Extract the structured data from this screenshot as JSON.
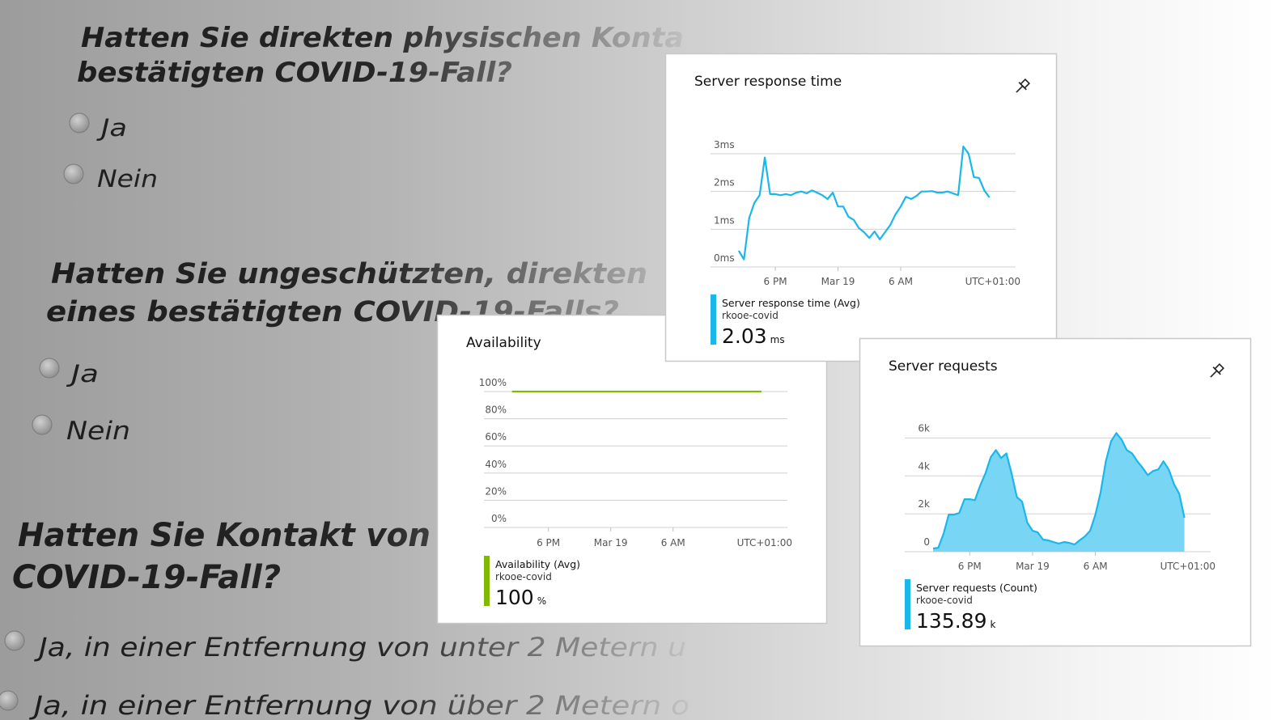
{
  "questions": [
    {
      "lines": [
        "Hatten Sie direkten physischen Konta",
        "bestätigten COVID-19-Fall?"
      ],
      "options": [
        "Ja",
        "Nein"
      ]
    },
    {
      "lines": [
        "Hatten Sie ungeschützten, direkten",
        "eines bestätigten COVID-19-Falls?"
      ],
      "options": [
        "Ja",
        "Nein"
      ]
    },
    {
      "lines": [
        "Hatten Sie Kontakt von",
        "COVID-19-Fall?"
      ],
      "options": [
        "Ja, in einer Entfernung von unter 2 Metern u",
        "Ja, in einer Entfernung von über 2 Metern o"
      ]
    }
  ],
  "chart_data": [
    {
      "type": "line",
      "title": "Server response time",
      "xlim": [
        -5.4,
        53
      ],
      "xticks": [
        {
          "value": 7,
          "label": "6 PM"
        },
        {
          "value": 19,
          "label": "Mar 19"
        },
        {
          "value": 31,
          "label": "6 AM"
        }
      ],
      "timezone": "UTC+01:00",
      "ylim": [
        0,
        3.3
      ],
      "yticks": [
        {
          "value": 0,
          "label": "0ms"
        },
        {
          "value": 1,
          "label": "1ms"
        },
        {
          "value": 2,
          "label": "2ms"
        },
        {
          "value": 3,
          "label": "3ms"
        }
      ],
      "grid": true,
      "series": [
        {
          "name": "Server response time (Avg)",
          "color": "#1ab7ea",
          "values": [
            0.43,
            0.2,
            1.3,
            1.7,
            1.9,
            2.9,
            1.93,
            1.93,
            1.9,
            1.93,
            1.9,
            1.97,
            2.0,
            1.95,
            2.03,
            1.97,
            1.9,
            1.8,
            1.97,
            1.6,
            1.6,
            1.33,
            1.25,
            1.03,
            0.92,
            0.77,
            0.94,
            0.73,
            0.92,
            1.11,
            1.39,
            1.6,
            1.86,
            1.8,
            1.88,
            2.0,
            2.0,
            2.01,
            1.97,
            1.97,
            2.0,
            1.95,
            1.9,
            3.19,
            3.0,
            2.38,
            2.36,
            2.03,
            1.84
          ]
        }
      ],
      "resource": "rkooe-covid",
      "summary": {
        "value": 2.03,
        "unit": "ms"
      }
    },
    {
      "type": "line",
      "title": "Availability",
      "xlim": [
        -5.4,
        53
      ],
      "xticks": [
        {
          "value": 7,
          "label": "6 PM"
        },
        {
          "value": 19,
          "label": "Mar 19"
        },
        {
          "value": 31,
          "label": "6 AM"
        }
      ],
      "timezone": "UTC+01:00",
      "ylim": [
        0,
        100
      ],
      "yticks": [
        {
          "value": 0,
          "label": "0%"
        },
        {
          "value": 20,
          "label": "20%"
        },
        {
          "value": 40,
          "label": "40%"
        },
        {
          "value": 60,
          "label": "60%"
        },
        {
          "value": 80,
          "label": "80%"
        },
        {
          "value": 100,
          "label": "100%"
        }
      ],
      "grid": true,
      "series": [
        {
          "name": "Availability (Avg)",
          "color": "#7fba00",
          "values": [
            100,
            100,
            100,
            100,
            100,
            100,
            100,
            100,
            100,
            100,
            100,
            100,
            100,
            100,
            100,
            100,
            100,
            100,
            100,
            100,
            100,
            100,
            100,
            100,
            100,
            100,
            100,
            100,
            100,
            100,
            100,
            100,
            100,
            100,
            100,
            100,
            100,
            100,
            100,
            100,
            100,
            100,
            100,
            100,
            100,
            100,
            100,
            100,
            100
          ]
        }
      ],
      "resource": "rkooe-covid",
      "summary": {
        "value": 100,
        "unit": "%"
      }
    },
    {
      "type": "area",
      "title": "Server requests",
      "xlim": [
        -5.4,
        53
      ],
      "xticks": [
        {
          "value": 7,
          "label": "6 PM"
        },
        {
          "value": 19,
          "label": "Mar 19"
        },
        {
          "value": 31,
          "label": "6 AM"
        }
      ],
      "timezone": "UTC+01:00",
      "ylim": [
        0,
        6400
      ],
      "yticks": [
        0,
        {
          "value": 2000,
          "label": "2k"
        },
        {
          "value": 4000,
          "label": "4k"
        },
        {
          "value": 6000,
          "label": "6k"
        }
      ],
      "grid": true,
      "series": [
        {
          "name": "Server requests (Count)",
          "color": "#1ab7ea",
          "fill": "#79d5f4",
          "values": [
            170,
            210,
            940,
            1960,
            1960,
            2040,
            2770,
            2770,
            2720,
            3490,
            4130,
            4980,
            5360,
            4940,
            5190,
            4130,
            2890,
            2640,
            1530,
            1110,
            1020,
            640,
            600,
            510,
            430,
            510,
            470,
            380,
            600,
            810,
            1110,
            1960,
            3150,
            4770,
            5830,
            6260,
            5910,
            5360,
            5190,
            4770,
            4430,
            4040,
            4260,
            4340,
            4770,
            4340,
            3570,
            3060,
            1790
          ]
        }
      ],
      "resource": "rkooe-covid",
      "summary": {
        "value": 135.89,
        "unit": "k"
      }
    }
  ]
}
